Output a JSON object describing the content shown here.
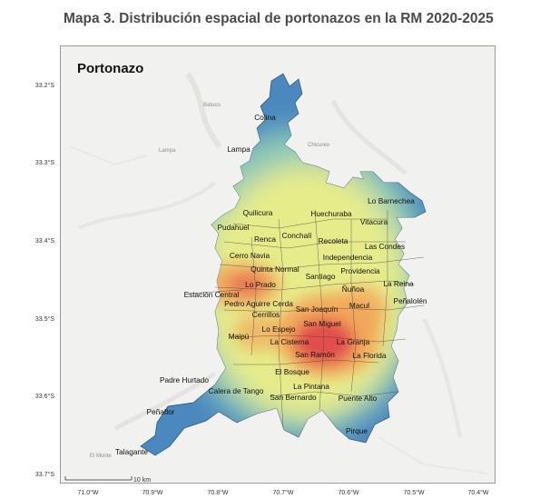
{
  "title": "Mapa 3. Distribución espacial de portonazos en la RM 2020-2025",
  "layer_label": "Portonazo",
  "lat_labels": [
    "33.2°S",
    "33.3°S",
    "33.4°S",
    "33.5°S",
    "33.6°S",
    "33.7°S"
  ],
  "lon_labels": [
    "71.0°W",
    "70.9°W",
    "70.8°W",
    "70.7°W",
    "70.6°W",
    "70.5°W",
    "70.4°W"
  ],
  "scale_label": "10 km",
  "background_labels": [
    "Batuco",
    "Lampa",
    "Chicureo",
    "El Monte"
  ],
  "communes": [
    "Colina",
    "Lampa",
    "Lo Barnechea",
    "Quilicura",
    "Huechuraba",
    "Vitacura",
    "Pudahuel",
    "Conchalí",
    "Renca",
    "Recoleta",
    "Las Condes",
    "Independencia",
    "Cerro Navia",
    "Quinta Normal",
    "Santiago",
    "Providencia",
    "Lo Prado",
    "Estación Central",
    "Ñuñoa",
    "La Reina",
    "Pedro Aguirre Cerda",
    "San Joaquín",
    "Macul",
    "Peñalolén",
    "Cerrillos",
    "San Miguel",
    "Lo Espejo",
    "Maipú",
    "La Cisterna",
    "La Granja",
    "San Ramón",
    "La Florida",
    "El Bosque",
    "Padre Hurtado",
    "La Pintana",
    "Calera de Tango",
    "San Bernardo",
    "Puente Alto",
    "Peñaflor",
    "Pirque",
    "Talagante"
  ],
  "colors": {
    "low": "#4a88bf",
    "mid_low": "#8fc9b5",
    "mid": "#e6ec8a",
    "high": "#f2a65a",
    "peak": "#e0424a"
  }
}
